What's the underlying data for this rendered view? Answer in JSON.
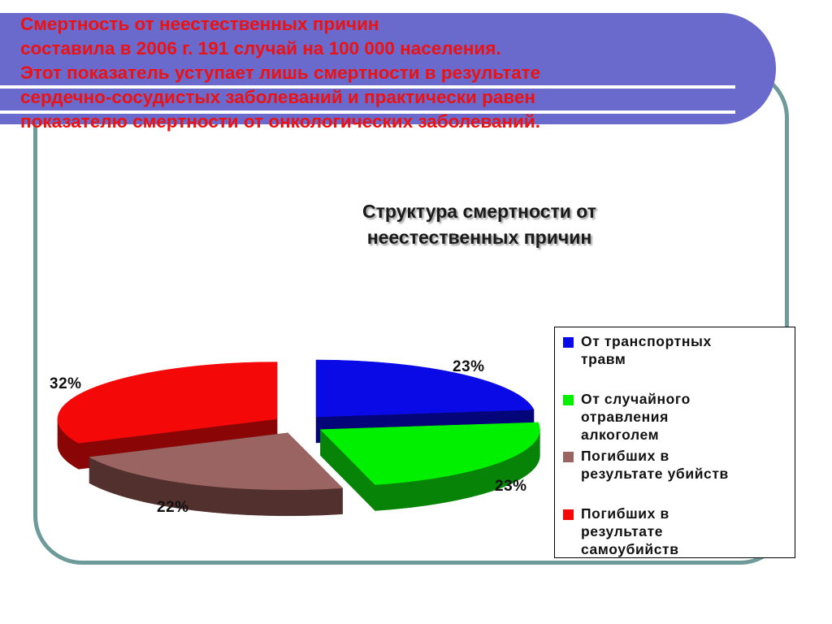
{
  "headline_lines": [
    "Смертность от неестественных причин",
    " составила в 2006 г. 191 случай на 100 000 населения.",
    "Этот показатель уступает лишь смертности в результате",
    "сердечно-сосудистых заболеваний и практически равен",
    "показателю смертности от онкологических заболеваний."
  ],
  "colors": {
    "banner": "#6a6acd",
    "frame": "#6f9a9a",
    "headline_text": "#ee1111"
  },
  "chart_data": {
    "type": "pie",
    "title_lines": [
      "Структура смертности от",
      "неестественных причин"
    ],
    "exploded": true,
    "three_d": true,
    "legend_position": "right",
    "slices": [
      {
        "name": "От транспортных травм",
        "value": 23,
        "label": "23%",
        "color": "#0a0ae6",
        "side": "#05057a"
      },
      {
        "name": "От случайного отравления алкоголем",
        "value": 23,
        "label": "23%",
        "color": "#00f000",
        "side": "#078407"
      },
      {
        "name": "Погибших в результате убийств",
        "value": 22,
        "label": "22%",
        "color": "#9a6462",
        "side": "#52302e"
      },
      {
        "name": "Погибших в результате самоубийств",
        "value": 32,
        "label": "32%",
        "color": "#f50808",
        "side": "#8a0606"
      }
    ],
    "legend_lines": [
      "От транспортных\nтравм",
      "От случайного\nотравления\nалкоголем",
      "Погибших в\nрезультате убийств",
      "Погибших в\nрезультате\nсамоубийств"
    ]
  }
}
